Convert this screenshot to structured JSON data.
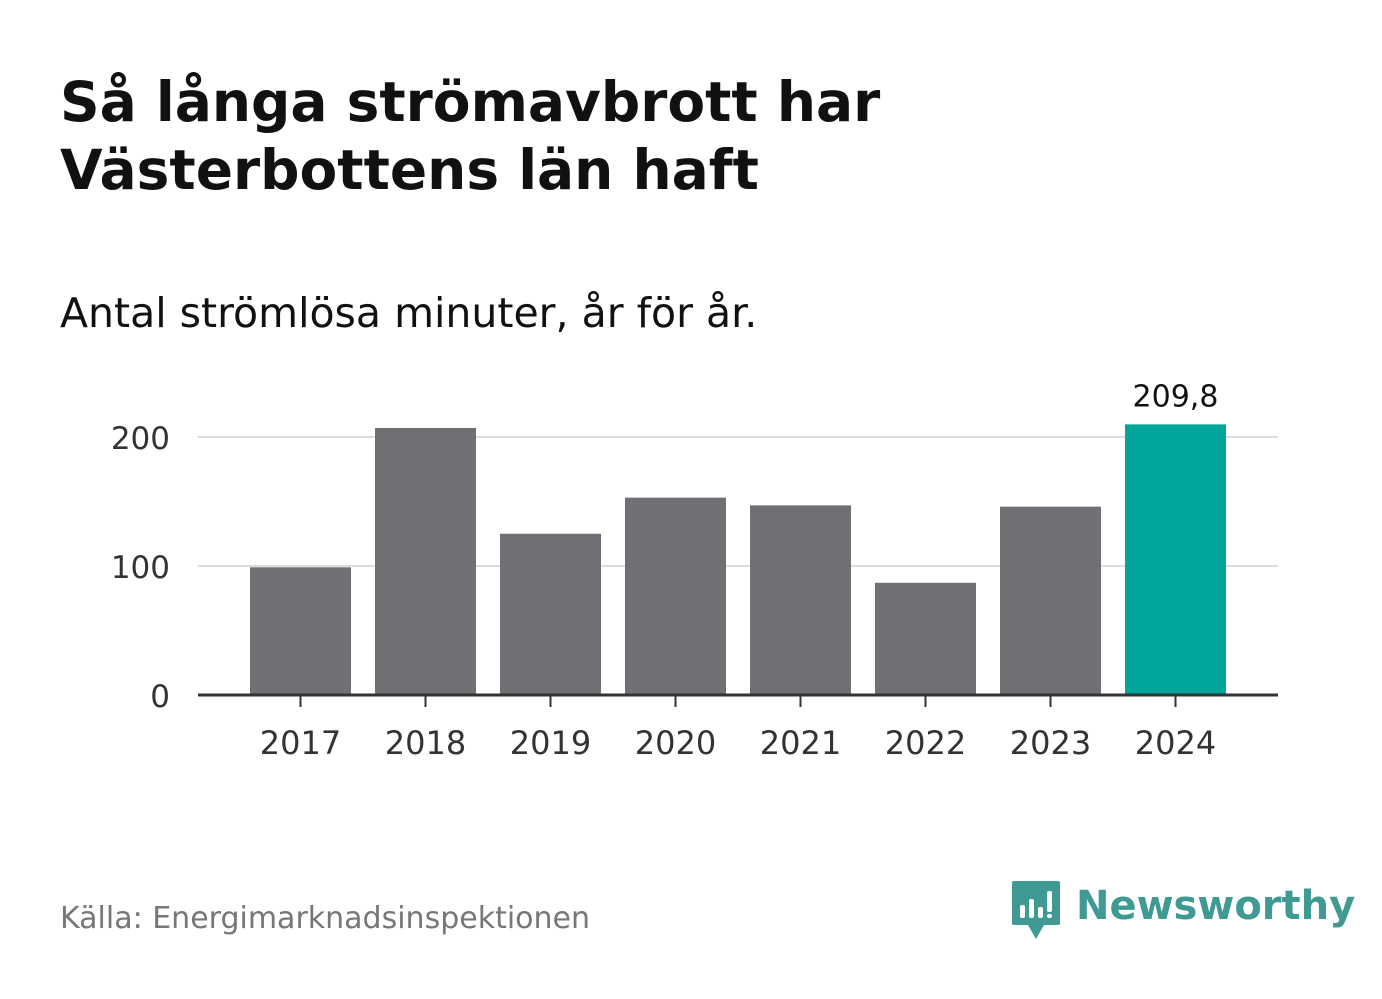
{
  "header": {
    "title": "Så långa strömavbrott har Västerbottens län haft",
    "subtitle": "Antal strömlösa minuter, år för år."
  },
  "footer": {
    "source": "Källa: Energimarknadsinspektionen",
    "brand_name": "Newsworthy",
    "brand_icon": "newsworthy-logo-icon"
  },
  "colors": {
    "bar_default": "#706f74",
    "bar_highlight": "#00a59b",
    "grid": "#dcdcdc",
    "axis": "#333333",
    "brand": "#3e9a93"
  },
  "chart_data": {
    "type": "bar",
    "title": "Så långa strömavbrott har Västerbottens län haft",
    "subtitle": "Antal strömlösa minuter, år för år.",
    "categories": [
      "2017",
      "2018",
      "2019",
      "2020",
      "2021",
      "2022",
      "2023",
      "2024"
    ],
    "values": [
      99,
      207,
      125,
      153,
      147,
      87,
      146,
      209.8
    ],
    "highlight_index": 7,
    "highlight_label": "209,8",
    "ylim": [
      0,
      215
    ],
    "yticks": [
      0,
      100,
      200
    ],
    "ytick_labels": [
      "0",
      "100",
      "200"
    ],
    "grid": true,
    "xlabel": "",
    "ylabel": ""
  }
}
